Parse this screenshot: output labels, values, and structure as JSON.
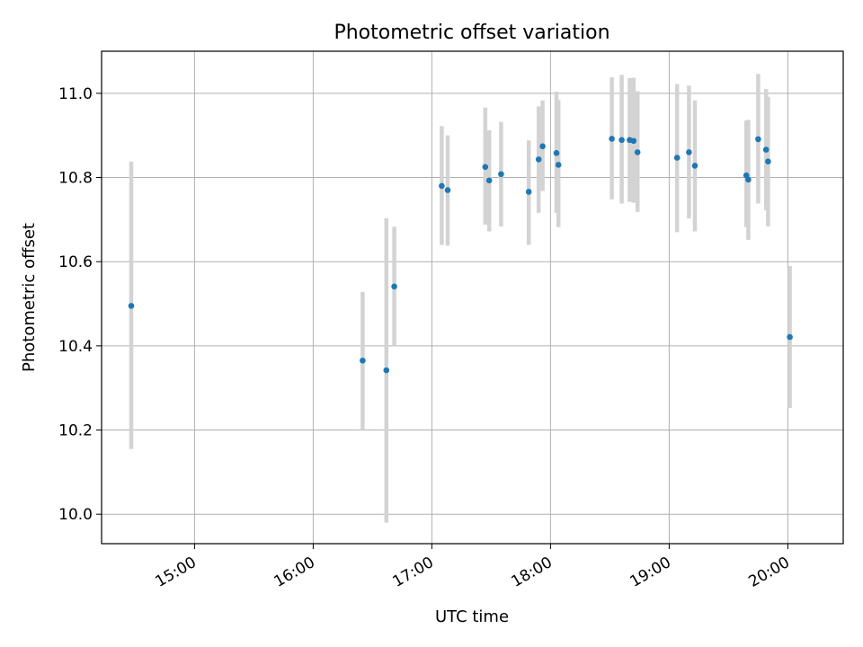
{
  "chart_data": {
    "type": "scatter",
    "title": "Photometric offset variation",
    "xlabel": "UTC time",
    "ylabel": "Photometric offset",
    "x_ticks": [
      "15:00",
      "16:00",
      "17:00",
      "18:00",
      "19:00",
      "20:00"
    ],
    "y_ticks": [
      "10.0",
      "10.2",
      "10.4",
      "10.6",
      "10.8",
      "11.0"
    ],
    "xlim": [
      "14:13",
      "20:28"
    ],
    "ylim": [
      9.93,
      11.1
    ],
    "grid": true,
    "series": [
      {
        "points": [
          {
            "x": "14:28",
            "y": 10.495,
            "yerr_low": 10.155,
            "yerr_high": 10.838
          },
          {
            "x": "16:25",
            "y": 10.365,
            "yerr_low": 10.2,
            "yerr_high": 10.528
          },
          {
            "x": "16:37",
            "y": 10.342,
            "yerr_low": 9.98,
            "yerr_high": 10.703
          },
          {
            "x": "16:41",
            "y": 10.541,
            "yerr_low": 10.4,
            "yerr_high": 10.683
          },
          {
            "x": "17:05",
            "y": 10.78,
            "yerr_low": 10.64,
            "yerr_high": 10.922
          },
          {
            "x": "17:08",
            "y": 10.77,
            "yerr_low": 10.638,
            "yerr_high": 10.9
          },
          {
            "x": "17:27",
            "y": 10.825,
            "yerr_low": 10.688,
            "yerr_high": 10.966
          },
          {
            "x": "17:29",
            "y": 10.793,
            "yerr_low": 10.672,
            "yerr_high": 10.912
          },
          {
            "x": "17:35",
            "y": 10.808,
            "yerr_low": 10.684,
            "yerr_high": 10.932
          },
          {
            "x": "17:49",
            "y": 10.766,
            "yerr_low": 10.64,
            "yerr_high": 10.888
          },
          {
            "x": "17:54",
            "y": 10.843,
            "yerr_low": 10.716,
            "yerr_high": 10.969
          },
          {
            "x": "17:56",
            "y": 10.874,
            "yerr_low": 10.768,
            "yerr_high": 10.983
          },
          {
            "x": "18:03",
            "y": 10.858,
            "yerr_low": 10.716,
            "yerr_high": 11.004
          },
          {
            "x": "18:04",
            "y": 10.83,
            "yerr_low": 10.682,
            "yerr_high": 10.984
          },
          {
            "x": "18:31",
            "y": 10.892,
            "yerr_low": 10.748,
            "yerr_high": 11.038
          },
          {
            "x": "18:36",
            "y": 10.889,
            "yerr_low": 10.738,
            "yerr_high": 11.044
          },
          {
            "x": "18:40",
            "y": 10.889,
            "yerr_low": 10.742,
            "yerr_high": 11.036
          },
          {
            "x": "18:42",
            "y": 10.887,
            "yerr_low": 10.74,
            "yerr_high": 11.037
          },
          {
            "x": "18:44",
            "y": 10.86,
            "yerr_low": 10.718,
            "yerr_high": 11.005
          },
          {
            "x": "19:04",
            "y": 10.847,
            "yerr_low": 10.67,
            "yerr_high": 11.022
          },
          {
            "x": "19:10",
            "y": 10.86,
            "yerr_low": 10.703,
            "yerr_high": 11.018
          },
          {
            "x": "19:13",
            "y": 10.828,
            "yerr_low": 10.672,
            "yerr_high": 10.983
          },
          {
            "x": "19:39",
            "y": 10.805,
            "yerr_low": 10.682,
            "yerr_high": 10.935
          },
          {
            "x": "19:40",
            "y": 10.795,
            "yerr_low": 10.652,
            "yerr_high": 10.937
          },
          {
            "x": "19:45",
            "y": 10.891,
            "yerr_low": 10.738,
            "yerr_high": 11.046
          },
          {
            "x": "19:49",
            "y": 10.866,
            "yerr_low": 10.722,
            "yerr_high": 11.01
          },
          {
            "x": "19:50",
            "y": 10.838,
            "yerr_low": 10.684,
            "yerr_high": 10.992
          },
          {
            "x": "20:01",
            "y": 10.421,
            "yerr_low": 10.252,
            "yerr_high": 10.59
          }
        ]
      }
    ],
    "colors": {
      "marker": "#1f77b4",
      "errorbar": "#d3d3d3",
      "grid": "#b0b0b0",
      "axes": "#000000"
    }
  }
}
